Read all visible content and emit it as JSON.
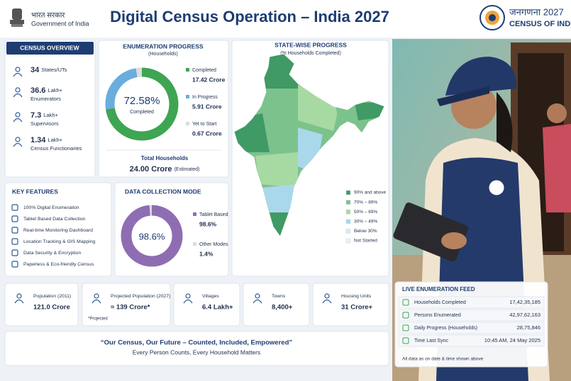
{
  "header": {
    "gov_hindi": "भारत सरकार",
    "gov_english": "Government of India",
    "title": "Digital Census Operation – India 2027",
    "logo_hindi": "जनगणना 2027",
    "logo_english": "CENSUS OF INDIA"
  },
  "census_overview": {
    "title": "CENSUS OVERVIEW",
    "items": [
      {
        "value": "34",
        "unit": "States/UTs"
      },
      {
        "value": "36.6",
        "unit": "Lakh+",
        "label": "Enumerators"
      },
      {
        "value": "7.3",
        "unit": "Lakh+",
        "label": "Supervisors"
      },
      {
        "value": "1.34",
        "unit": "Lakh+",
        "label": "Census Functionaries"
      }
    ]
  },
  "enumeration_progress": {
    "title": "ENUMERATION PROGRESS",
    "subtitle": "(Households)",
    "center_value": "72.58%",
    "center_label": "Completed",
    "segments": [
      {
        "name": "Completed",
        "value": 17.42,
        "value_label": "17.42 Crore",
        "color": "#3ea552"
      },
      {
        "name": "In Progress",
        "value": 5.91,
        "value_label": "5.91 Crore",
        "color": "#6badde"
      },
      {
        "name": "Yet to Start",
        "value": 0.67,
        "value_label": "0.67 Crore",
        "color": "#dcdcdc"
      }
    ],
    "total_title": "Total Households",
    "total_value": "24.00 Crore",
    "total_note": "(Estimated)"
  },
  "state_progress": {
    "title": "STATE-WISE PROGRESS",
    "subtitle": "(% Households Completed)",
    "legend": [
      {
        "label": "90% and above",
        "color": "#3f9a66"
      },
      {
        "label": "70% – 89%",
        "color": "#7cc28c"
      },
      {
        "label": "50% – 69%",
        "color": "#a7d9a2"
      },
      {
        "label": "30% – 49%",
        "color": "#a9d8ea"
      },
      {
        "label": "Below 30%",
        "color": "#d8e9f2"
      },
      {
        "label": "Not Started",
        "color": "#eeeeee"
      }
    ]
  },
  "key_features": {
    "title": "KEY FEATURES",
    "items": [
      "100% Digital Enumeration",
      "Tablet Based Data Collection",
      "Real-time Monitoring Dashboard",
      "Location Tracking & GIS Mapping",
      "Data Security & Encryption",
      "Paperless & Eco-friendly Census"
    ]
  },
  "data_collection_mode": {
    "title": "DATA COLLECTION MODE",
    "center_value": "98.6%",
    "segments": [
      {
        "name": "Tablet Based",
        "value": 98.6,
        "value_label": "98.6%",
        "color": "#8f6db2"
      },
      {
        "name": "Other Modes",
        "value": 1.4,
        "value_label": "1.4%",
        "color": "#dcdcdc"
      }
    ]
  },
  "stats": [
    {
      "label": "Population (2011)",
      "value": "121.0 Crore"
    },
    {
      "label": "Projected Population (2027)",
      "value": "≈ 139 Crore*"
    },
    {
      "label": "Villages",
      "value": "6.4 Lakh+"
    },
    {
      "label": "Towns",
      "value": "8,400+"
    },
    {
      "label": "Housing Units",
      "value": "31 Crore+"
    }
  ],
  "stats_note": "*Projected",
  "quote": {
    "headline": "“Our Census, Our Future – Counted, Included, Empowered”",
    "tagline": "Every Person Counts, Every Household Matters"
  },
  "live_feed": {
    "title": "LIVE ENUMERATION FEED",
    "rows": [
      {
        "label": "Households Completed",
        "value": "17,42,35,185"
      },
      {
        "label": "Persons Enumerated",
        "value": "42,97,62,163"
      },
      {
        "label": "Daily Progress (Households)",
        "value": "28,75,846"
      },
      {
        "label": "Time Last Sync",
        "value": "10:45 AM, 24 May 2025"
      }
    ],
    "footnote": "All data as on date & time shown above"
  }
}
